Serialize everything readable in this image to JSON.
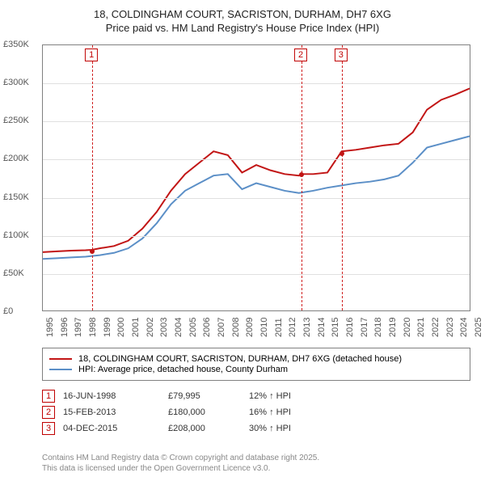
{
  "chart": {
    "type": "line",
    "title_line1": "18, COLDINGHAM COURT, SACRISTON, DURHAM, DH7 6XG",
    "title_line2": "Price paid vs. HM Land Registry's House Price Index (HPI)",
    "title_fontsize": 13,
    "background_color": "#ffffff",
    "border_color": "#808080",
    "grid_color": "#e0e0e0",
    "ylim": [
      0,
      350000
    ],
    "ytick_step": 50000,
    "ytick_labels": [
      "£0",
      "£50K",
      "£100K",
      "£150K",
      "£200K",
      "£250K",
      "£300K",
      "£350K"
    ],
    "xlim": [
      1995,
      2025
    ],
    "xtick_step": 1,
    "xtick_labels": [
      "1995",
      "1996",
      "1997",
      "1998",
      "1999",
      "2000",
      "2001",
      "2002",
      "2003",
      "2004",
      "2005",
      "2006",
      "2007",
      "2008",
      "2009",
      "2010",
      "2011",
      "2012",
      "2013",
      "2014",
      "2015",
      "2016",
      "2017",
      "2018",
      "2019",
      "2020",
      "2021",
      "2022",
      "2023",
      "2024",
      "2025"
    ],
    "series": [
      {
        "name": "18, COLDINGHAM COURT, SACRISTON, DURHAM, DH7 6XG (detached house)",
        "color": "#c21515",
        "line_width": 2,
        "x_years": [
          1995,
          1996,
          1997,
          1998,
          1998.46,
          1999,
          2000,
          2001,
          2002,
          2003,
          2004,
          2005,
          2006,
          2007,
          2008,
          2009,
          2010,
          2011,
          2012,
          2013,
          2013.12,
          2014,
          2015,
          2015.93,
          2016,
          2017,
          2018,
          2019,
          2020,
          2021,
          2022,
          2023,
          2024,
          2025
        ],
        "y_values": [
          77000,
          78000,
          79000,
          79500,
          79995,
          82000,
          85000,
          92000,
          108000,
          130000,
          158000,
          180000,
          195000,
          210000,
          205000,
          182000,
          192000,
          185000,
          180000,
          178000,
          180000,
          180000,
          182000,
          208000,
          210000,
          212000,
          215000,
          218000,
          220000,
          235000,
          265000,
          278000,
          285000,
          293000
        ]
      },
      {
        "name": "HPI: Average price, detached house, County Durham",
        "color": "#5b8fc7",
        "line_width": 2,
        "x_years": [
          1995,
          1996,
          1997,
          1998,
          1999,
          2000,
          2001,
          2002,
          2003,
          2004,
          2005,
          2006,
          2007,
          2008,
          2009,
          2010,
          2011,
          2012,
          2013,
          2014,
          2015,
          2016,
          2017,
          2018,
          2019,
          2020,
          2021,
          2022,
          2023,
          2024,
          2025
        ],
        "y_values": [
          68000,
          69000,
          70000,
          71000,
          73000,
          76000,
          82000,
          95000,
          115000,
          140000,
          158000,
          168000,
          178000,
          180000,
          160000,
          168000,
          163000,
          158000,
          155000,
          158000,
          162000,
          165000,
          168000,
          170000,
          173000,
          178000,
          195000,
          215000,
          220000,
          225000,
          230000
        ]
      }
    ],
    "events": [
      {
        "label": "1",
        "year": 1998.46,
        "date": "16-JUN-1998",
        "price": "£79,995",
        "change": "12% ↑ HPI"
      },
      {
        "label": "2",
        "year": 2013.12,
        "date": "15-FEB-2013",
        "price": "£180,000",
        "change": "16% ↑ HPI"
      },
      {
        "label": "3",
        "year": 2015.93,
        "date": "04-DEC-2015",
        "price": "£208,000",
        "change": "30% ↑ HPI"
      }
    ],
    "event_line_color": "#d02020",
    "event_label_color": "#c00000"
  },
  "footnote": {
    "line1": "Contains HM Land Registry data © Crown copyright and database right 2025.",
    "line2": "This data is licensed under the Open Government Licence v3.0."
  }
}
